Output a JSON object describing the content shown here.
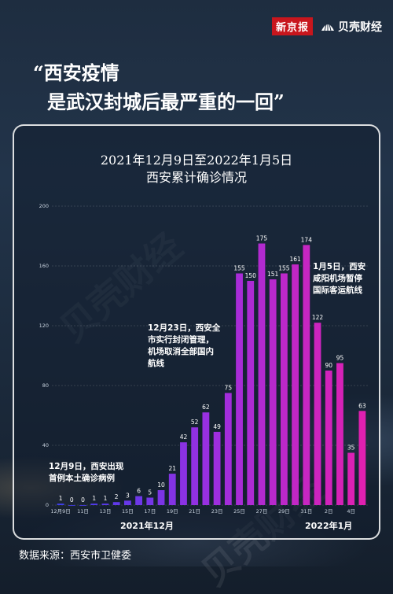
{
  "masthead": {
    "outlet": "新京报",
    "brand": "贝壳财经"
  },
  "headline": {
    "line1": "“西安疫情",
    "line2": "是武汉封城后最严重的一回”"
  },
  "watermark": "贝壳财经",
  "chart_data": {
    "type": "bar",
    "title": "2021年12月9日至2022年1月5日",
    "subtitle": "西安累计确诊情况",
    "categories": [
      "12月9日",
      "10日",
      "11日",
      "12日",
      "13日",
      "14日",
      "15日",
      "16日",
      "17日",
      "18日",
      "19日",
      "20日",
      "21日",
      "22日",
      "23日",
      "24日",
      "25日",
      "26日",
      "27日",
      "28日",
      "29日",
      "30日",
      "31日",
      "1日",
      "2日",
      "3日",
      "4日",
      "5日"
    ],
    "tick_labels": [
      "12月9日",
      "",
      "11日",
      "",
      "13日",
      "",
      "15日",
      "",
      "17日",
      "",
      "19日",
      "",
      "21日",
      "",
      "23日",
      "",
      "25日",
      "",
      "27日",
      "",
      "29日",
      "",
      "31日",
      "",
      "2日",
      "",
      "4日",
      ""
    ],
    "values": [
      1,
      0,
      0,
      1,
      1,
      2,
      3,
      6,
      5,
      10,
      21,
      42,
      52,
      62,
      49,
      75,
      155,
      150,
      175,
      151,
      155,
      161,
      174,
      122,
      90,
      95,
      35,
      63
    ],
    "ylim": [
      0,
      200
    ],
    "yticks": [
      0,
      40,
      80,
      120,
      160,
      200
    ],
    "grid": true,
    "month_labels": [
      "2021年12月",
      "2022年1月"
    ],
    "annotations": [
      {
        "text_line1": "12月9日，西安出现",
        "text_line2": "首例本土确诊病例"
      },
      {
        "text_line1": "12月23日，西安全",
        "text_line2": "市实行封闭管理，",
        "text_line3": "机场取消全部国内",
        "text_line4": "航线"
      },
      {
        "text_line1": "1月5日，西安",
        "text_line2": "咸阳机场暂停",
        "text_line3": "国际客运航线"
      }
    ],
    "colors": {
      "bar_start": "#3d3ff0",
      "bar_mid": "#9b2fe0",
      "bar_end": "#e020b0"
    }
  },
  "source": "数据来源：西安市卫健委"
}
